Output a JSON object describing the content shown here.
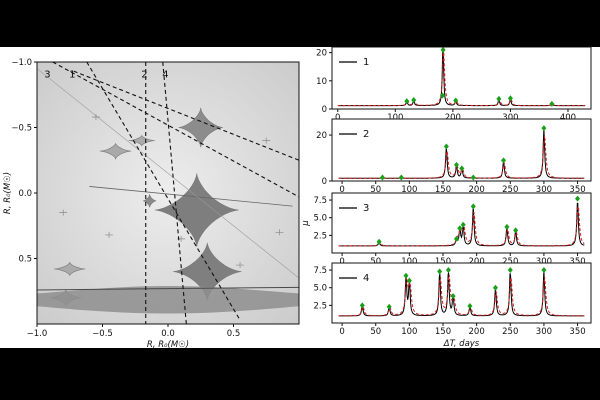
{
  "chart_data": [
    {
      "type": "density_map",
      "xlabel": "R, R₀(M☉)",
      "ylabel": "R, R₀(M☉)",
      "xlim": [
        -1.0,
        1.0
      ],
      "ylim": [
        -1.0,
        1.0
      ],
      "y_inverted": true,
      "xticks": [
        "−1.0",
        "−0.5",
        "0.0",
        "0.5"
      ],
      "yticks": [
        "−1.0",
        "−0.5",
        "0.0",
        "0.5"
      ],
      "track_labels": [
        "3",
        "1",
        "2",
        "4"
      ]
    },
    {
      "type": "line",
      "legend": "1",
      "xlim": [
        -10,
        440
      ],
      "ylim": [
        0,
        22
      ],
      "xticks": [
        "0",
        "100",
        "200",
        "300",
        "400"
      ],
      "yticks": [
        "0",
        "10",
        "20"
      ],
      "baseline": 1.2,
      "peaks": [
        [
          120,
          2.8
        ],
        [
          132,
          3.2
        ],
        [
          182,
          4.8
        ],
        [
          183,
          21
        ],
        [
          205,
          3.0
        ],
        [
          280,
          3.6
        ],
        [
          300,
          3.8
        ],
        [
          372,
          1.8
        ]
      ]
    },
    {
      "type": "line",
      "legend": "2",
      "xlim": [
        -15,
        370
      ],
      "ylim": [
        0,
        27
      ],
      "xticks": [
        "0",
        "50",
        "100",
        "150",
        "200",
        "250",
        "300",
        "350"
      ],
      "yticks": [
        "0",
        "20"
      ],
      "baseline": 1.2,
      "peaks": [
        [
          60,
          1.5
        ],
        [
          88,
          1.5
        ],
        [
          155,
          15
        ],
        [
          170,
          7
        ],
        [
          178,
          5.5
        ],
        [
          195,
          1.5
        ],
        [
          240,
          9
        ],
        [
          300,
          23
        ]
      ]
    },
    {
      "type": "line",
      "legend": "3",
      "xlim": [
        -15,
        370
      ],
      "ylim": [
        0,
        8.5
      ],
      "xticks": [
        "0",
        "50",
        "100",
        "150",
        "200",
        "250",
        "300",
        "350"
      ],
      "yticks": [
        "2.5",
        "5.0",
        "7.5"
      ],
      "ylabel": "μ",
      "baseline": 1.0,
      "peaks": [
        [
          55,
          1.6
        ],
        [
          170,
          2.0
        ],
        [
          175,
          3.5
        ],
        [
          180,
          4.0
        ],
        [
          195,
          6.6
        ],
        [
          245,
          3.7
        ],
        [
          258,
          3.2
        ],
        [
          350,
          7.7
        ]
      ]
    },
    {
      "type": "line",
      "legend": "4",
      "xlim": [
        -15,
        370
      ],
      "ylim": [
        0,
        8.5
      ],
      "xticks": [
        "0",
        "50",
        "100",
        "150",
        "200",
        "250",
        "300",
        "350"
      ],
      "yticks": [
        "2.5",
        "5.0",
        "7.5"
      ],
      "xlabel": "ΔT, days",
      "baseline": 1.0,
      "peaks": [
        [
          30,
          2.5
        ],
        [
          70,
          2.3
        ],
        [
          95,
          6.7
        ],
        [
          100,
          6.0
        ],
        [
          145,
          7.3
        ],
        [
          158,
          7.5
        ],
        [
          165,
          3.8
        ],
        [
          190,
          2.4
        ],
        [
          228,
          5.0
        ],
        [
          250,
          7.5
        ],
        [
          300,
          7.5
        ]
      ]
    }
  ]
}
